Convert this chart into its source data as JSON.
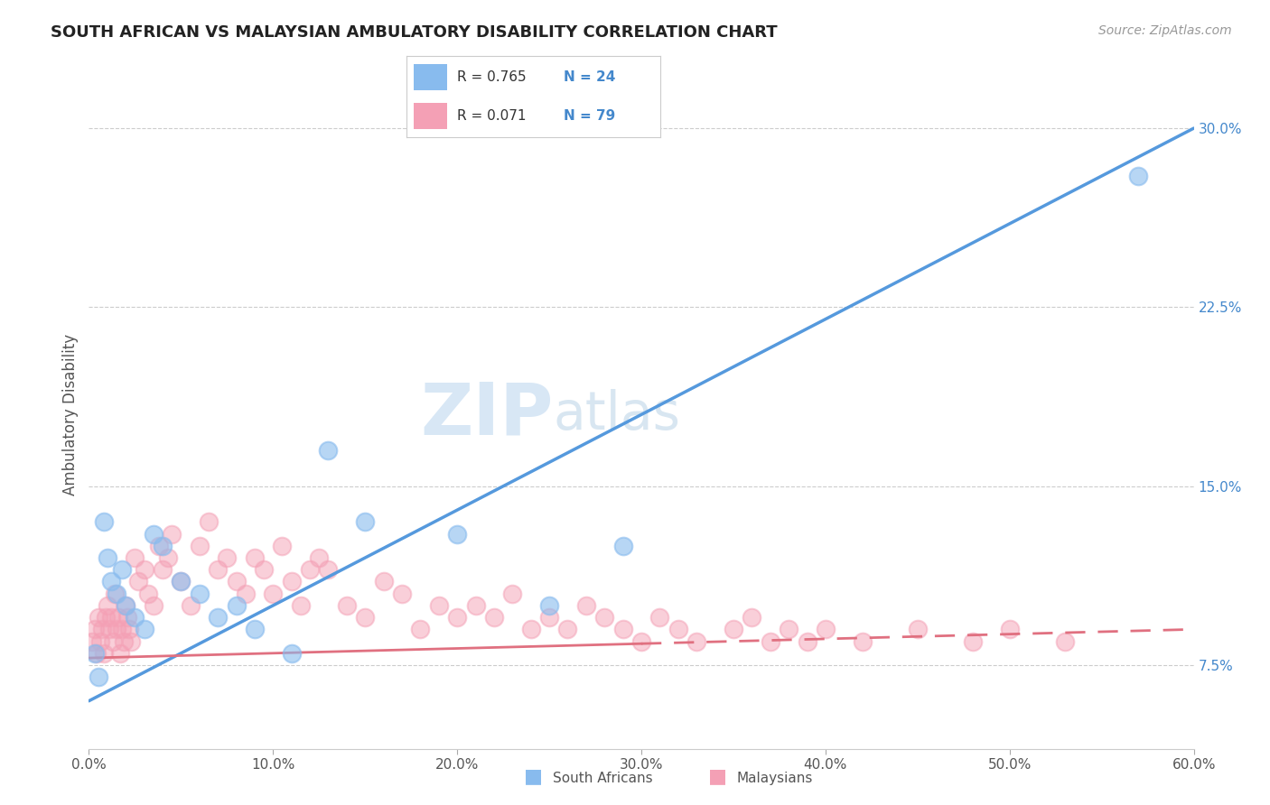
{
  "title": "SOUTH AFRICAN VS MALAYSIAN AMBULATORY DISABILITY CORRELATION CHART",
  "source": "Source: ZipAtlas.com",
  "ylabel": "Ambulatory Disability",
  "xlim": [
    0.0,
    60.0
  ],
  "ylim": [
    4.0,
    32.0
  ],
  "ylabel_vals_right": [
    7.5,
    15.0,
    22.5,
    30.0
  ],
  "ylabel_ticks_right": [
    "7.5%",
    "15.0%",
    "22.5%",
    "30.0%"
  ],
  "xlabel_vals": [
    0.0,
    10.0,
    20.0,
    30.0,
    40.0,
    50.0,
    60.0
  ],
  "blue_R": 0.765,
  "blue_N": 24,
  "pink_R": 0.071,
  "pink_N": 79,
  "blue_line_color": "#5599dd",
  "pink_line_color": "#e07080",
  "blue_dot_color": "#88bbee",
  "pink_dot_color": "#f4a0b5",
  "legend_label_blue": "South Africans",
  "legend_label_pink": "Malaysians",
  "watermark_zip": "ZIP",
  "watermark_atlas": "atlas",
  "grid_color": "#cccccc",
  "background_color": "#ffffff",
  "title_color": "#222222",
  "right_axis_color": "#4488cc",
  "blue_line_y0": 6.0,
  "blue_line_y1": 30.0,
  "pink_line_y0": 7.8,
  "pink_line_y1": 9.0,
  "pink_solid_end_x": 30.0,
  "blue_scatter_x": [
    0.3,
    0.5,
    0.8,
    1.0,
    1.2,
    1.5,
    1.8,
    2.0,
    2.5,
    3.0,
    3.5,
    4.0,
    5.0,
    6.0,
    7.0,
    8.0,
    9.0,
    11.0,
    13.0,
    15.0,
    20.0,
    25.0,
    29.0,
    57.0
  ],
  "blue_scatter_y": [
    8.0,
    7.0,
    13.5,
    12.0,
    11.0,
    10.5,
    11.5,
    10.0,
    9.5,
    9.0,
    13.0,
    12.5,
    11.0,
    10.5,
    9.5,
    10.0,
    9.0,
    8.0,
    16.5,
    13.5,
    13.0,
    10.0,
    12.5,
    28.0
  ],
  "pink_scatter_x": [
    0.2,
    0.3,
    0.4,
    0.5,
    0.6,
    0.7,
    0.8,
    0.9,
    1.0,
    1.1,
    1.2,
    1.3,
    1.4,
    1.5,
    1.6,
    1.7,
    1.8,
    1.9,
    2.0,
    2.1,
    2.2,
    2.3,
    2.5,
    2.7,
    3.0,
    3.2,
    3.5,
    3.8,
    4.0,
    4.3,
    4.5,
    5.0,
    5.5,
    6.0,
    6.5,
    7.0,
    7.5,
    8.0,
    8.5,
    9.0,
    9.5,
    10.0,
    10.5,
    11.0,
    11.5,
    12.0,
    12.5,
    13.0,
    14.0,
    15.0,
    16.0,
    17.0,
    18.0,
    19.0,
    20.0,
    21.0,
    22.0,
    23.0,
    24.0,
    25.0,
    26.0,
    27.0,
    28.0,
    29.0,
    30.0,
    31.0,
    32.0,
    33.0,
    35.0,
    36.0,
    37.0,
    38.0,
    39.0,
    40.0,
    42.0,
    45.0,
    48.0,
    50.0,
    53.0
  ],
  "pink_scatter_y": [
    8.5,
    9.0,
    8.0,
    9.5,
    8.5,
    9.0,
    8.0,
    9.5,
    10.0,
    9.0,
    9.5,
    8.5,
    10.5,
    9.0,
    9.5,
    8.0,
    9.0,
    8.5,
    10.0,
    9.5,
    9.0,
    8.5,
    12.0,
    11.0,
    11.5,
    10.5,
    10.0,
    12.5,
    11.5,
    12.0,
    13.0,
    11.0,
    10.0,
    12.5,
    13.5,
    11.5,
    12.0,
    11.0,
    10.5,
    12.0,
    11.5,
    10.5,
    12.5,
    11.0,
    10.0,
    11.5,
    12.0,
    11.5,
    10.0,
    9.5,
    11.0,
    10.5,
    9.0,
    10.0,
    9.5,
    10.0,
    9.5,
    10.5,
    9.0,
    9.5,
    9.0,
    10.0,
    9.5,
    9.0,
    8.5,
    9.5,
    9.0,
    8.5,
    9.0,
    9.5,
    8.5,
    9.0,
    8.5,
    9.0,
    8.5,
    9.0,
    8.5,
    9.0,
    8.5
  ]
}
